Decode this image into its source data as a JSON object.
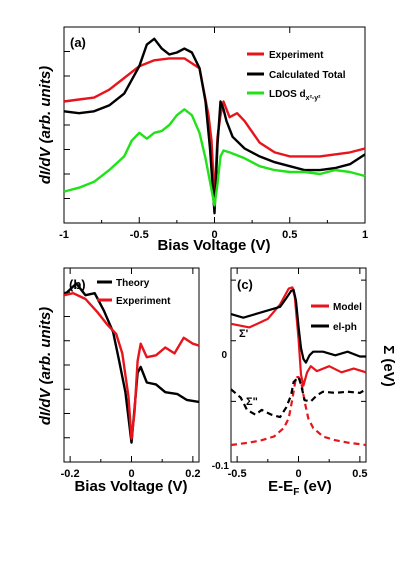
{
  "chart_data": [
    {
      "panel": "(a)",
      "type": "line",
      "xlabel": "Bias Voltage (V)",
      "ylabel": "dI/dV (arb. units)",
      "xlim": [
        -1,
        1
      ],
      "ylim": [
        0,
        1
      ],
      "x_ticks": [
        "-1",
        "-0.5",
        "0",
        "0.5",
        "1"
      ],
      "legend_position": "top-right",
      "series": [
        {
          "name": "Experiment",
          "color": "#e8141c",
          "x": [
            -1.0,
            -0.9,
            -0.8,
            -0.7,
            -0.6,
            -0.5,
            -0.4,
            -0.3,
            -0.2,
            -0.1,
            -0.04,
            -0.02,
            0.0,
            0.02,
            0.04,
            0.06,
            0.08,
            0.1,
            0.15,
            0.2,
            0.3,
            0.4,
            0.5,
            0.6,
            0.7,
            0.8,
            0.9,
            1.0
          ],
          "y": [
            0.62,
            0.63,
            0.64,
            0.68,
            0.74,
            0.8,
            0.83,
            0.84,
            0.84,
            0.79,
            0.55,
            0.42,
            0.13,
            0.44,
            0.55,
            0.62,
            0.58,
            0.54,
            0.56,
            0.52,
            0.41,
            0.36,
            0.34,
            0.34,
            0.34,
            0.35,
            0.36,
            0.38
          ]
        },
        {
          "name": "Calculated Total",
          "color": "#000000",
          "x": [
            -1.0,
            -0.9,
            -0.8,
            -0.7,
            -0.6,
            -0.5,
            -0.45,
            -0.4,
            -0.35,
            -0.3,
            -0.25,
            -0.2,
            -0.15,
            -0.1,
            -0.06,
            -0.03,
            0.0,
            0.02,
            0.04,
            0.06,
            0.08,
            0.12,
            0.2,
            0.3,
            0.4,
            0.5,
            0.6,
            0.7,
            0.8,
            0.9,
            1.0
          ],
          "y": [
            0.57,
            0.56,
            0.57,
            0.6,
            0.66,
            0.8,
            0.91,
            0.94,
            0.89,
            0.86,
            0.87,
            0.89,
            0.87,
            0.79,
            0.62,
            0.38,
            0.05,
            0.4,
            0.62,
            0.58,
            0.52,
            0.44,
            0.38,
            0.34,
            0.31,
            0.29,
            0.27,
            0.27,
            0.28,
            0.3,
            0.35
          ]
        },
        {
          "name": "LDOS d_{x²-y²}",
          "color": "#21e219",
          "x": [
            -1.0,
            -0.9,
            -0.8,
            -0.7,
            -0.6,
            -0.55,
            -0.5,
            -0.45,
            -0.4,
            -0.35,
            -0.3,
            -0.25,
            -0.2,
            -0.15,
            -0.1,
            -0.06,
            -0.02,
            0.0,
            0.02,
            0.04,
            0.06,
            0.1,
            0.2,
            0.3,
            0.4,
            0.5,
            0.6,
            0.7,
            0.8,
            0.9,
            1.0
          ],
          "y": [
            0.16,
            0.18,
            0.21,
            0.27,
            0.34,
            0.42,
            0.46,
            0.43,
            0.46,
            0.47,
            0.5,
            0.55,
            0.58,
            0.55,
            0.46,
            0.33,
            0.17,
            0.09,
            0.2,
            0.34,
            0.37,
            0.36,
            0.33,
            0.29,
            0.27,
            0.26,
            0.26,
            0.25,
            0.27,
            0.26,
            0.24
          ]
        }
      ]
    },
    {
      "panel": "(b)",
      "type": "line",
      "xlabel": "Bias Voltage (V)",
      "ylabel": "dI/dV (arb. units)",
      "xlim": [
        -0.22,
        0.22
      ],
      "ylim": [
        0,
        1
      ],
      "x_ticks": [
        "-0.2",
        "0",
        "0.2"
      ],
      "legend_position": "top-left",
      "series": [
        {
          "name": "Theory",
          "color": "#000000",
          "x": [
            -0.22,
            -0.18,
            -0.15,
            -0.12,
            -0.09,
            -0.06,
            -0.04,
            -0.02,
            0.0,
            0.01,
            0.02,
            0.03,
            0.05,
            0.08,
            0.11,
            0.15,
            0.18,
            0.22
          ],
          "y": [
            0.86,
            0.92,
            0.86,
            0.87,
            0.78,
            0.67,
            0.52,
            0.36,
            0.1,
            0.28,
            0.46,
            0.49,
            0.41,
            0.4,
            0.36,
            0.35,
            0.32,
            0.31
          ]
        },
        {
          "name": "Experiment",
          "color": "#e8141c",
          "x": [
            -0.22,
            -0.19,
            -0.15,
            -0.11,
            -0.08,
            -0.05,
            -0.03,
            -0.01,
            0.0,
            0.01,
            0.02,
            0.03,
            0.05,
            0.08,
            0.11,
            0.14,
            0.17,
            0.2,
            0.22
          ],
          "y": [
            0.86,
            0.87,
            0.84,
            0.77,
            0.71,
            0.66,
            0.56,
            0.34,
            0.12,
            0.26,
            0.52,
            0.61,
            0.54,
            0.55,
            0.59,
            0.56,
            0.64,
            0.61,
            0.6
          ]
        }
      ]
    },
    {
      "panel": "(c)",
      "type": "line",
      "xlabel": "E-E_F (eV)",
      "ylabel": "Σ (eV)",
      "xlim": [
        -0.55,
        0.55
      ],
      "ylim": [
        -0.1,
        0.06
      ],
      "x_ticks": [
        "-0.5",
        "0",
        "0.5"
      ],
      "y_ticks": [
        "-0.1",
        "0"
      ],
      "legend_position": "top-right",
      "annotations": [
        "Σ'",
        "Σ\""
      ],
      "series": [
        {
          "name": "Model",
          "color": "#e8141c",
          "x": [
            -0.55,
            -0.4,
            -0.25,
            -0.15,
            -0.08,
            -0.05,
            -0.03,
            0.0,
            0.02,
            0.04,
            0.07,
            0.1,
            0.15,
            0.25,
            0.35,
            0.45,
            0.55
          ],
          "y": [
            0.014,
            0.011,
            0.018,
            0.03,
            0.043,
            0.044,
            0.036,
            0.002,
            -0.028,
            -0.037,
            -0.026,
            -0.021,
            -0.025,
            -0.021,
            -0.026,
            -0.023,
            -0.026
          ]
        },
        {
          "name": "el-ph",
          "color": "#000000",
          "x": [
            -0.55,
            -0.45,
            -0.35,
            -0.25,
            -0.15,
            -0.1,
            -0.06,
            -0.04,
            -0.02,
            0.0,
            0.02,
            0.04,
            0.06,
            0.09,
            0.12,
            0.2,
            0.3,
            0.4,
            0.5,
            0.55
          ],
          "y": [
            0.022,
            0.019,
            0.022,
            0.025,
            0.028,
            0.035,
            0.041,
            0.042,
            0.033,
            0.012,
            -0.006,
            -0.015,
            -0.018,
            -0.012,
            -0.009,
            -0.009,
            -0.012,
            -0.009,
            -0.013,
            -0.013
          ]
        },
        {
          "name": "Model Σ\"",
          "color": "#e8141c",
          "dashed": true,
          "x": [
            -0.55,
            -0.4,
            -0.3,
            -0.2,
            -0.12,
            -0.08,
            -0.05,
            -0.02,
            0.0,
            0.02,
            0.05,
            0.08,
            0.12,
            0.2,
            0.3,
            0.4,
            0.55
          ],
          "y": [
            -0.086,
            -0.084,
            -0.082,
            -0.079,
            -0.072,
            -0.064,
            -0.048,
            -0.03,
            -0.03,
            -0.033,
            -0.05,
            -0.064,
            -0.072,
            -0.079,
            -0.082,
            -0.084,
            -0.086
          ]
        },
        {
          "name": "el-ph Σ\"",
          "color": "#000000",
          "dashed": true,
          "x": [
            -0.55,
            -0.47,
            -0.42,
            -0.35,
            -0.3,
            -0.22,
            -0.15,
            -0.1,
            -0.06,
            -0.04,
            -0.02,
            0.0,
            0.02,
            0.05,
            0.1,
            0.15,
            0.2,
            0.3,
            0.4,
            0.5,
            0.55
          ],
          "y": [
            -0.04,
            -0.047,
            -0.057,
            -0.061,
            -0.057,
            -0.061,
            -0.063,
            -0.055,
            -0.045,
            -0.034,
            -0.032,
            -0.03,
            -0.036,
            -0.049,
            -0.05,
            -0.045,
            -0.042,
            -0.043,
            -0.042,
            -0.043,
            -0.04
          ]
        }
      ]
    }
  ],
  "labels": {
    "a": {
      "panel": "(a)",
      "ylabel": "dI/dV (arb. units)",
      "xlabel": "Bias Voltage (V)",
      "legend": [
        "Experiment",
        "Calculated Total",
        "LDOS d"
      ],
      "legend_sub": "x²-y²",
      "xticks": [
        "-1",
        "-0.5",
        "0",
        "0.5",
        "1"
      ]
    },
    "b": {
      "panel": "(b)",
      "ylabel": "dI/dV (arb. units)",
      "xlabel": "Bias Voltage (V)",
      "legend": [
        "Theory",
        "Experiment"
      ],
      "xticks": [
        "-0.2",
        "0",
        "0.2"
      ]
    },
    "c": {
      "panel": "(c)",
      "ylabel": "Σ (eV)",
      "xlabel_main": "E-E",
      "xlabel_sub": "F",
      "xlabel_unit": " (eV)",
      "legend": [
        "Model",
        "el-ph"
      ],
      "xticks": [
        "-0.5",
        "0",
        "0.5"
      ],
      "yticks": [
        "0",
        "-0.1"
      ],
      "sigma_prime": "Σ'",
      "sigma_dprime": "Σ\""
    }
  }
}
